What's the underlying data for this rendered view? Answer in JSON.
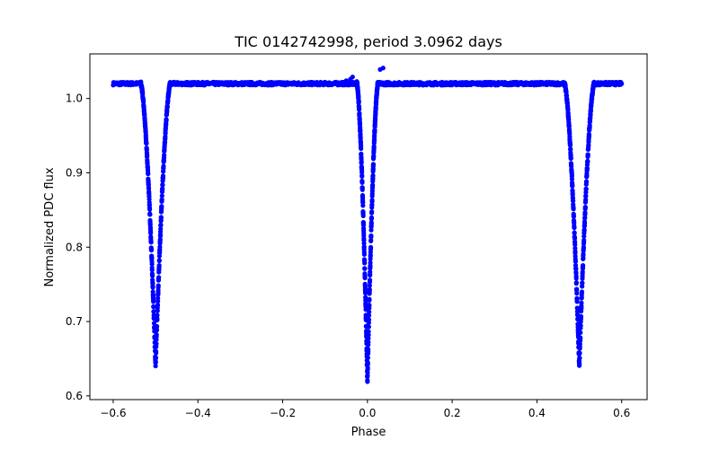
{
  "chart_data": {
    "type": "scatter",
    "title": "TIC 0142742998, period 3.0962 days",
    "xlabel": "Phase",
    "ylabel": "Normalized PDC flux",
    "xlim": [
      -0.655,
      0.66
    ],
    "ylim": [
      0.595,
      1.06
    ],
    "xticks": [
      -0.6,
      -0.4,
      -0.2,
      0.0,
      0.2,
      0.4,
      0.6
    ],
    "xtick_labels": [
      "−0.6",
      "−0.4",
      "−0.2",
      "0.0",
      "0.2",
      "0.4",
      "0.6"
    ],
    "yticks": [
      0.6,
      0.7,
      0.8,
      0.9,
      1.0
    ],
    "ytick_labels": [
      "0.6",
      "0.7",
      "0.8",
      "0.9",
      "1.0"
    ],
    "grid": false,
    "marker_color": "#0000ff",
    "series": [
      {
        "name": "phase-folded light curve",
        "baseline_flux": 1.02,
        "x_range": [
          -0.6,
          0.6
        ],
        "eclipses": [
          {
            "center": -0.5,
            "depth": 0.38,
            "half_width": 0.035,
            "min_flux": 0.64
          },
          {
            "center": 0.0,
            "depth": 0.4,
            "half_width": 0.025,
            "min_flux": 0.617
          },
          {
            "center": 0.5,
            "depth": 0.38,
            "half_width": 0.035,
            "min_flux": 0.64
          }
        ],
        "feature_points": [
          {
            "x": -0.06,
            "y": 1.022
          },
          {
            "x": -0.05,
            "y": 1.024
          },
          {
            "x": -0.04,
            "y": 1.026
          },
          {
            "x": -0.035,
            "y": 1.029
          },
          {
            "x": 0.03,
            "y": 1.039
          },
          {
            "x": 0.037,
            "y": 1.041
          }
        ]
      }
    ]
  }
}
